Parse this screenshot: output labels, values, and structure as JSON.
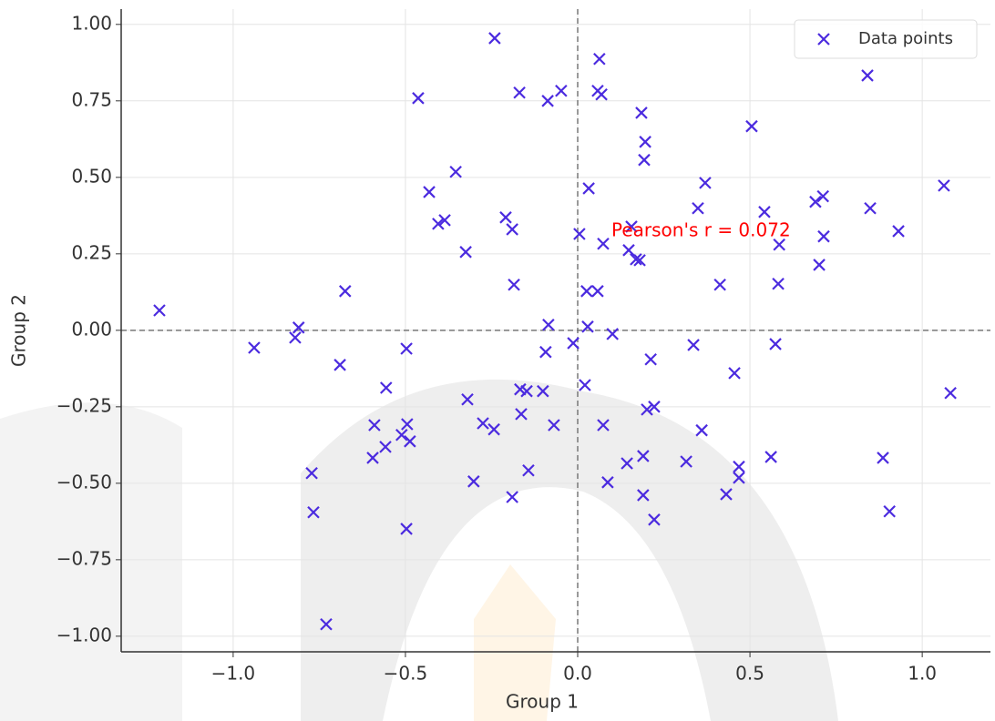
{
  "chart_data": {
    "type": "scatter",
    "x_label": "Group 1",
    "y_label": "Group 2",
    "annotation": "Pearson's r = 0.072",
    "annotation_color": "#ff0000",
    "x": [
      -1.214,
      -0.939,
      -0.81,
      -0.82,
      -0.675,
      -0.69,
      -0.772,
      -0.767,
      -0.73,
      -0.556,
      -0.59,
      -0.558,
      -0.595,
      -0.511,
      -0.497,
      -0.463,
      -0.431,
      -0.497,
      -0.495,
      -0.487,
      -0.405,
      -0.386,
      -0.354,
      -0.325,
      -0.32,
      -0.302,
      -0.275,
      -0.243,
      -0.241,
      -0.209,
      -0.19,
      -0.185,
      -0.19,
      -0.169,
      -0.164,
      -0.167,
      -0.148,
      -0.143,
      -0.101,
      -0.093,
      -0.085,
      -0.087,
      -0.048,
      -0.069,
      -0.013,
      0.005,
      0.021,
      0.029,
      0.026,
      0.032,
      0.058,
      0.063,
      0.058,
      0.069,
      0.074,
      0.074,
      0.087,
      0.101,
      0.143,
      0.148,
      0.156,
      0.169,
      0.18,
      0.185,
      0.196,
      0.193,
      0.19,
      0.19,
      0.201,
      0.212,
      0.222,
      0.222,
      0.315,
      0.336,
      0.349,
      0.36,
      0.37,
      0.413,
      0.431,
      0.455,
      0.468,
      0.468,
      0.505,
      0.542,
      0.561,
      0.574,
      0.585,
      0.582,
      0.69,
      0.712,
      0.701,
      0.714,
      0.841,
      0.849,
      0.886,
      0.905,
      0.931,
      1.063,
      1.082
    ],
    "series": [
      {
        "name": "Data points",
        "color": "#4b2bdf",
        "values": [
          0.065,
          -0.057,
          0.009,
          -0.024,
          0.128,
          -0.113,
          -0.467,
          -0.595,
          -0.961,
          -0.188,
          -0.31,
          -0.381,
          -0.417,
          -0.342,
          -0.649,
          0.759,
          0.452,
          -0.06,
          -0.307,
          -0.363,
          0.348,
          0.36,
          0.518,
          0.256,
          -0.226,
          -0.494,
          -0.304,
          -0.324,
          0.955,
          0.369,
          0.33,
          0.149,
          -0.545,
          0.777,
          -0.274,
          -0.193,
          -0.199,
          -0.458,
          -0.199,
          -0.071,
          0.018,
          0.75,
          0.783,
          -0.31,
          -0.042,
          0.315,
          -0.179,
          0.012,
          0.128,
          0.464,
          0.128,
          0.887,
          0.783,
          0.771,
          0.283,
          -0.31,
          -0.497,
          -0.012,
          -0.435,
          0.262,
          0.339,
          0.232,
          0.229,
          0.711,
          0.616,
          0.557,
          -0.411,
          -0.539,
          -0.259,
          -0.095,
          -0.25,
          -0.619,
          -0.429,
          -0.048,
          0.399,
          -0.327,
          0.482,
          0.149,
          -0.536,
          -0.14,
          -0.446,
          -0.482,
          0.667,
          0.387,
          -0.414,
          -0.045,
          0.28,
          0.152,
          0.42,
          0.438,
          0.214,
          0.307,
          0.833,
          0.399,
          -0.417,
          -0.592,
          0.324,
          0.473,
          -0.205
        ]
      }
    ],
    "xlim": [
      -1.325,
      1.198
    ],
    "ylim": [
      -1.051,
      1.05
    ],
    "xticks": [
      {
        "value": -1,
        "label": "−1.0"
      },
      {
        "value": -0.5,
        "label": "−0.5"
      },
      {
        "value": 0,
        "label": "0.0"
      },
      {
        "value": 0.5,
        "label": "0.5"
      },
      {
        "value": 1,
        "label": "1.0"
      }
    ],
    "yticks": [
      {
        "value": -1,
        "label": "−1.00"
      },
      {
        "value": -0.75,
        "label": "−0.75"
      },
      {
        "value": -0.5,
        "label": "−0.50"
      },
      {
        "value": -0.25,
        "label": "−0.25"
      },
      {
        "value": 0,
        "label": "0.00"
      },
      0.25,
      {
        "value": 0.5,
        "label": "0.50"
      },
      0.75,
      {
        "value": 1,
        "label": "1.00"
      }
    ],
    "grid": true,
    "reference_lines": {
      "x": 0,
      "y": 0
    },
    "legend": "upper right"
  }
}
